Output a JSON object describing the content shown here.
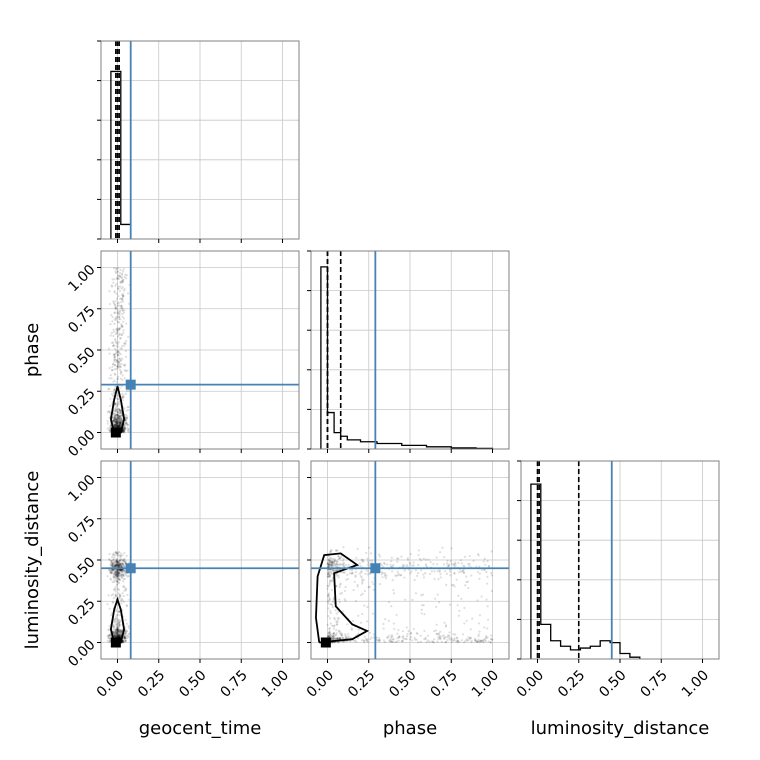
{
  "chart_data": {
    "type": "corner",
    "parameters": [
      "geocent_time",
      "phase",
      "luminosity_distance"
    ],
    "axis_range": [
      -0.1,
      1.1
    ],
    "ticks": [
      0.0,
      0.25,
      0.5,
      0.75,
      1.0
    ],
    "tick_labels": [
      "0.00",
      "0.25",
      "0.50",
      "0.75",
      "1.00"
    ],
    "grid": true,
    "colors": {
      "truth": "#4682b4",
      "hist": "#000000",
      "points": "#000000"
    },
    "truths": {
      "geocent_time": 0.08,
      "phase": 0.29,
      "luminosity_distance": 0.45
    },
    "quantiles": {
      "geocent_time": [
        -0.01,
        0.0,
        0.01
      ],
      "phase": [
        0.0,
        0.0,
        0.08
      ],
      "luminosity_distance": [
        0.0,
        0.01,
        0.25
      ]
    },
    "histograms": {
      "geocent_time": {
        "edges": [
          -0.04,
          0.02,
          0.08
        ],
        "counts": [
          0.92,
          0.08
        ]
      },
      "phase": {
        "edges": [
          -0.04,
          0.0,
          0.04,
          0.08,
          0.12,
          0.2,
          0.3,
          0.45,
          0.6,
          0.75,
          0.9,
          1.0
        ],
        "counts": [
          1.0,
          0.2,
          0.09,
          0.07,
          0.05,
          0.04,
          0.03,
          0.02,
          0.012,
          0.006,
          0.003
        ]
      },
      "luminosity_distance": {
        "edges": [
          -0.04,
          0.02,
          0.08,
          0.14,
          0.2,
          0.26,
          0.32,
          0.38,
          0.44,
          0.5,
          0.56,
          0.62
        ],
        "counts": [
          0.96,
          0.19,
          0.1,
          0.07,
          0.05,
          0.06,
          0.07,
          0.1,
          0.09,
          0.03,
          0.01
        ]
      }
    },
    "contours": {
      "phase_vs_geocent_time": [
        [
          -0.02,
          0.0
        ],
        [
          0.02,
          0.0
        ],
        [
          0.04,
          0.08
        ],
        [
          0.02,
          0.2
        ],
        [
          0.0,
          0.28
        ],
        [
          -0.02,
          0.2
        ],
        [
          -0.04,
          0.08
        ],
        [
          -0.02,
          0.0
        ]
      ],
      "luminosity_distance_vs_geocent_time": [
        [
          -0.02,
          0.0
        ],
        [
          0.02,
          0.0
        ],
        [
          0.04,
          0.08
        ],
        [
          0.02,
          0.2
        ],
        [
          0.0,
          0.26
        ],
        [
          -0.02,
          0.2
        ],
        [
          -0.04,
          0.08
        ],
        [
          -0.02,
          0.0
        ]
      ],
      "luminosity_distance_vs_phase": [
        [
          -0.05,
          0.0
        ],
        [
          0.15,
          0.02
        ],
        [
          0.24,
          0.07
        ],
        [
          0.15,
          0.11
        ],
        [
          0.05,
          0.22
        ],
        [
          0.04,
          0.42
        ],
        [
          0.18,
          0.47
        ],
        [
          0.08,
          0.54
        ],
        [
          -0.02,
          0.53
        ],
        [
          -0.06,
          0.4
        ],
        [
          -0.07,
          0.15
        ],
        [
          -0.05,
          0.0
        ]
      ]
    },
    "contour_modes": {
      "phase_vs_geocent_time": [
        -0.01,
        0.0
      ],
      "luminosity_distance_vs_geocent_time": [
        -0.01,
        0.0
      ],
      "luminosity_distance_vs_phase": [
        -0.01,
        0.0
      ]
    }
  }
}
